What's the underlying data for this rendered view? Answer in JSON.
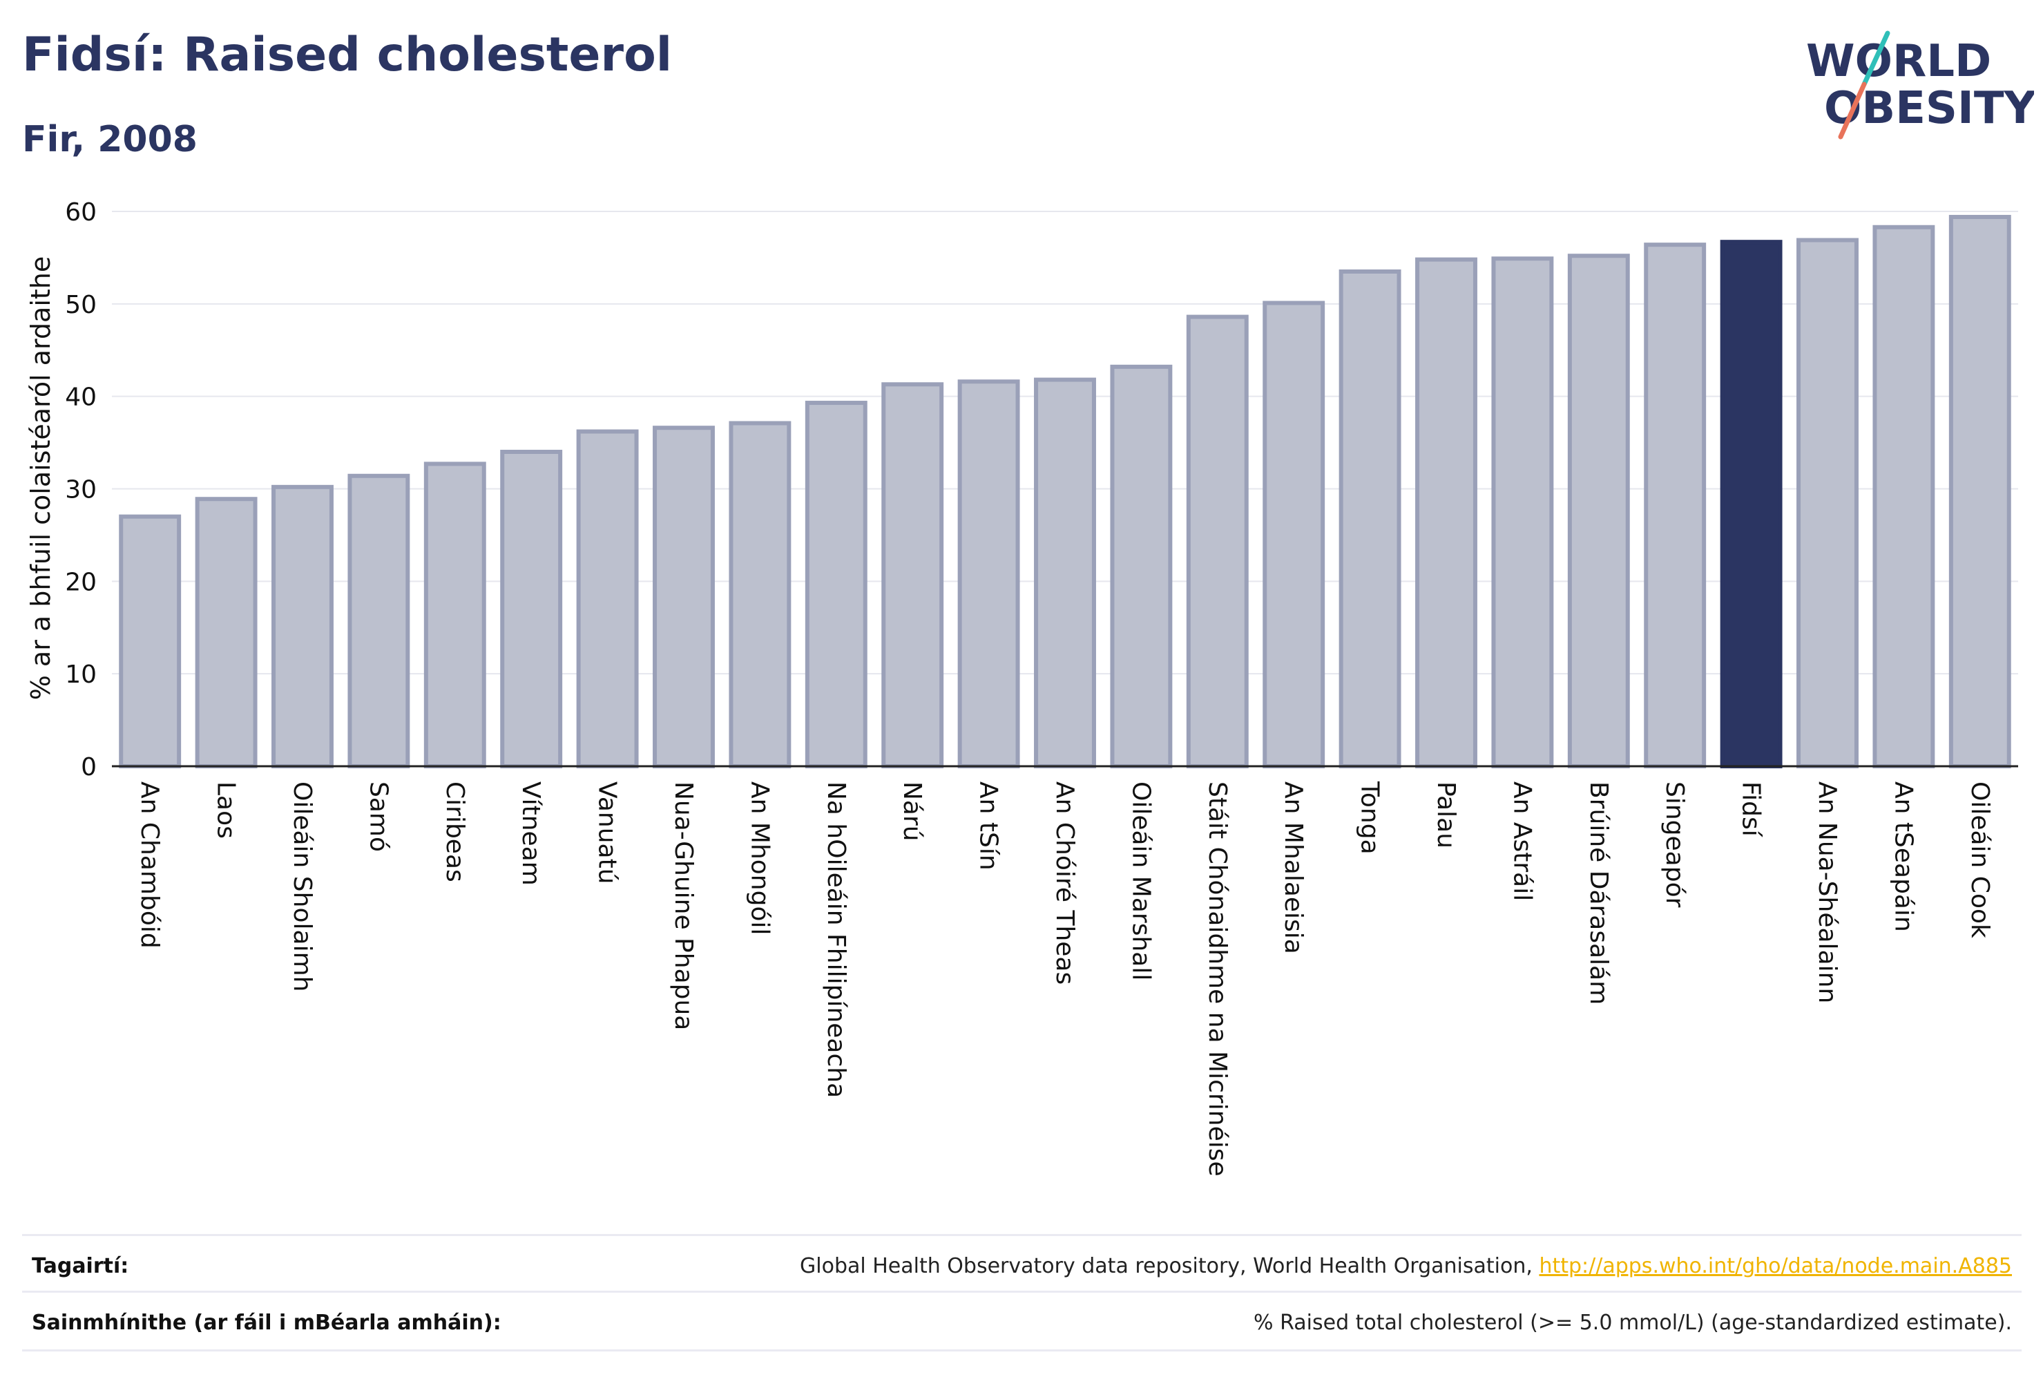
{
  "header": {
    "title": "Fidsí: Raised cholesterol",
    "subtitle": "Fir, 2008",
    "logo_line1": "WORLD",
    "logo_line2": "OBESITY"
  },
  "chart_data": {
    "type": "bar",
    "title": "Fidsí: Raised cholesterol",
    "subtitle": "Fir, 2008",
    "ylabel": "% ar a bhfuil colaistéaról ardaithe",
    "xlabel": "",
    "ylim": [
      0,
      60
    ],
    "yticks": [
      0,
      10,
      20,
      30,
      40,
      50,
      60
    ],
    "grid": true,
    "highlight": "Fidsí",
    "colors": {
      "bar": "#bcc0ce",
      "bar_edge": "#9aa0b8",
      "highlight": "#2b3562",
      "grid": "#e6e7ee",
      "axis": "#222222"
    },
    "categories": [
      "An Chambóid",
      "Laos",
      "Oileáin Sholaimh",
      "Samó",
      "Ciribeas",
      "Vítneam",
      "Vanuatú",
      "Nua-Ghuine Phapua",
      "An Mhongóil",
      "Na hOileáin Fhilipíneacha",
      "Nárú",
      "An tSín",
      "An Chóiré Theas",
      "Oileáin Marshall",
      "Stáit Chónaidhme na Micrinéise",
      "An Mhalaeisia",
      "Tonga",
      "Palau",
      "An Astráil",
      "Brúiné Dárasalám",
      "Singeapór",
      "Fidsí",
      "An Nua-Shéalainn",
      "An tSeapáin",
      "Oileáin Cook"
    ],
    "values": [
      27.0,
      28.9,
      30.2,
      31.4,
      32.7,
      34.0,
      36.2,
      36.6,
      37.1,
      39.3,
      41.3,
      41.6,
      41.8,
      43.2,
      48.6,
      50.1,
      53.5,
      54.8,
      54.9,
      55.2,
      56.4,
      56.7,
      56.9,
      58.3,
      59.4
    ]
  },
  "references": {
    "source_label": "Tagairtí:",
    "source_text": "Global Health Observatory data repository, World Health Organisation, ",
    "source_link": "http://apps.who.int/gho/data/node.main.A885",
    "definition_label": "Sainmhínithe (ar fáil i mBéarla amháin):",
    "definition_text": "% Raised total cholesterol (>= 5.0 mmol/L) (age-standardized estimate)."
  }
}
